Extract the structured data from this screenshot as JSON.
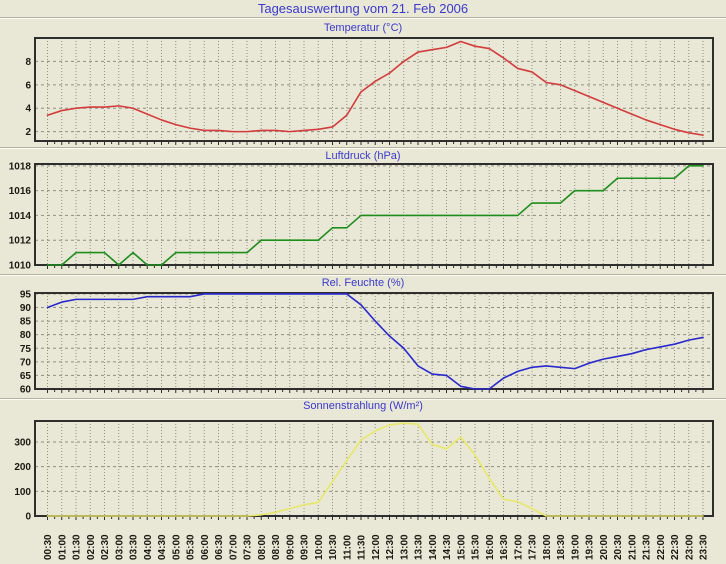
{
  "page": {
    "title": "Tagesauswertung vom 21. Feb 2006",
    "background": "#e9e7d6",
    "title_color": "#3a3acd"
  },
  "x_labels": [
    "00:30",
    "01:00",
    "01:30",
    "02:00",
    "02:30",
    "03:00",
    "03:30",
    "04:00",
    "04:30",
    "05:00",
    "05:30",
    "06:00",
    "06:30",
    "07:00",
    "07:30",
    "08:00",
    "08:30",
    "09:00",
    "09:30",
    "10:00",
    "10:30",
    "11:00",
    "11:30",
    "12:00",
    "12:30",
    "13:00",
    "13:30",
    "14:00",
    "14:30",
    "15:00",
    "15:30",
    "16:00",
    "16:30",
    "17:00",
    "17:30",
    "18:00",
    "18:30",
    "19:00",
    "19:30",
    "20:00",
    "20:30",
    "21:00",
    "21:30",
    "22:00",
    "22:30",
    "23:00",
    "23:30"
  ],
  "chart_data": [
    {
      "type": "line",
      "title": "Temperatur (°C)",
      "color": "#d23c3c",
      "ylim": [
        1.2,
        10.0
      ],
      "yticks": [
        2,
        4,
        6,
        8
      ],
      "grid": true,
      "legend": "none",
      "values": [
        3.4,
        3.8,
        4.0,
        4.1,
        4.1,
        4.2,
        4.0,
        3.5,
        3.0,
        2.6,
        2.3,
        2.1,
        2.1,
        2.0,
        2.0,
        2.1,
        2.1,
        2.0,
        2.1,
        2.2,
        2.4,
        3.4,
        5.4,
        6.3,
        7.0,
        8.0,
        8.8,
        9.0,
        9.2,
        9.7,
        9.3,
        9.1,
        8.3,
        7.4,
        7.1,
        6.2,
        6.0,
        5.5,
        5.0,
        4.5,
        4.0,
        3.5,
        3.0,
        2.6,
        2.2,
        1.9,
        1.7
      ]
    },
    {
      "type": "line",
      "title": "Luftdruck (hPa)",
      "color": "#1e8e1e",
      "ylim": [
        1010,
        1018.15
      ],
      "yticks": [
        1010,
        1012,
        1014,
        1016,
        1018
      ],
      "grid": true,
      "legend": "none",
      "values": [
        1010,
        1010,
        1011,
        1011,
        1011,
        1010,
        1011,
        1010,
        1010,
        1011,
        1011,
        1011,
        1011,
        1011,
        1011,
        1012,
        1012,
        1012,
        1012,
        1012,
        1013,
        1013,
        1014,
        1014,
        1014,
        1014,
        1014,
        1014,
        1014,
        1014,
        1014,
        1014,
        1014,
        1014,
        1015,
        1015,
        1015,
        1016,
        1016,
        1016,
        1017,
        1017,
        1017,
        1017,
        1017,
        1018,
        1018
      ]
    },
    {
      "type": "line",
      "title": "Rel. Feuchte (%)",
      "color": "#2929cc",
      "ylim": [
        60,
        95.35
      ],
      "yticks": [
        60,
        65,
        70,
        75,
        80,
        85,
        90,
        95
      ],
      "grid": true,
      "legend": "none",
      "values": [
        90,
        92,
        93,
        93,
        93,
        93,
        93,
        94,
        94,
        94,
        94,
        95,
        95,
        95,
        95,
        95,
        95,
        95,
        95,
        95,
        95,
        95,
        91,
        85,
        79.5,
        75,
        68.5,
        65.5,
        65,
        61,
        60,
        60,
        64,
        66.5,
        68,
        68.5,
        68,
        67.5,
        69.5,
        71,
        72,
        73,
        74.5,
        75.5,
        76.5,
        78,
        79
      ]
    },
    {
      "type": "line",
      "title": "Sonnenstrahlung (W/m²)",
      "color": "#e8e868",
      "ylim": [
        0,
        385
      ],
      "yticks": [
        0,
        100,
        200,
        300
      ],
      "grid": true,
      "legend": "none",
      "values": [
        0,
        0,
        0,
        0,
        0,
        0,
        0,
        0,
        0,
        0,
        0,
        0,
        0,
        0,
        0,
        5,
        15,
        30,
        45,
        55,
        140,
        225,
        308,
        345,
        369,
        376,
        372,
        290,
        272,
        320,
        247,
        153,
        68,
        58,
        30,
        0,
        0,
        0,
        0,
        0,
        0,
        0,
        0,
        0,
        0,
        0,
        0
      ]
    }
  ]
}
